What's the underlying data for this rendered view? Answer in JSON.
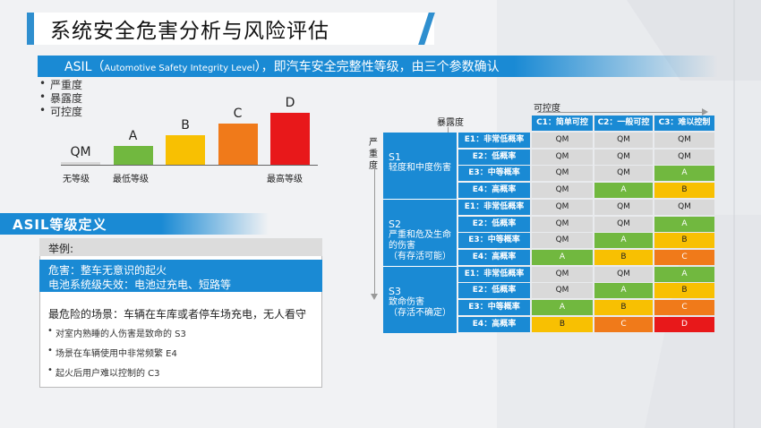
{
  "title": "系统安全危害分析与风险评估",
  "asil_band": {
    "prefix": "ASIL（",
    "english": "Automotive Safety Integrity Level",
    "suffix": "），即汽车安全完整性等级，由三个参数确认"
  },
  "bullets": [
    "严重度",
    "暴露度",
    "可控度"
  ],
  "levels": [
    {
      "label": "QM",
      "level": 0,
      "color": "#d9d9d9"
    },
    {
      "label": "A",
      "level": 1,
      "color": "#71b83f"
    },
    {
      "label": "B",
      "level": 2,
      "color": "#f8c002"
    },
    {
      "label": "C",
      "level": 3,
      "color": "#f07a1a"
    },
    {
      "label": "D",
      "level": 4,
      "color": "#e8181a"
    }
  ],
  "axis_labels": {
    "none": "无等级",
    "lowest": "最低等级",
    "highest": "最高等级"
  },
  "definition_title": "ASIL等级定义",
  "example": {
    "heading": "举例:",
    "hazard_line1": "危害：整车无意识的起火",
    "hazard_line2": "电池系统级失效：电池过充电、短路等",
    "worst_scene": "最危险的场景：车辆在车库或者停车场充电，无人看守",
    "points": [
      "对室内熟睡的人伤害是致命的 S3",
      "场景在车辆使用中非常频繁 E4",
      "起火后用户难以控制的 C3"
    ]
  },
  "matrix": {
    "controllability_label": "可控度",
    "exposure_label": "暴露度",
    "severity_label": "严重度",
    "columns": [
      "C1：简单可控",
      "C2：一般可控",
      "C3：难以控制"
    ],
    "exposures": [
      "E1：非常低概率",
      "E2：低概率",
      "E3：中等概率",
      "E4：高概率"
    ],
    "severities": [
      {
        "code": "S1",
        "desc": [
          "轻度和中度伤害"
        ]
      },
      {
        "code": "S2",
        "desc": [
          "严重和危及生命",
          "的伤害",
          "（有存活可能）"
        ]
      },
      {
        "code": "S3",
        "desc": [
          "致命伤害",
          "（存活不确定）"
        ]
      }
    ],
    "values": [
      [
        [
          "QM",
          "QM",
          "QM"
        ],
        [
          "QM",
          "QM",
          "QM"
        ],
        [
          "QM",
          "QM",
          "A"
        ],
        [
          "QM",
          "A",
          "B"
        ]
      ],
      [
        [
          "QM",
          "QM",
          "QM"
        ],
        [
          "QM",
          "QM",
          "A"
        ],
        [
          "QM",
          "A",
          "B"
        ],
        [
          "A",
          "B",
          "C"
        ]
      ],
      [
        [
          "QM",
          "QM",
          "A"
        ],
        [
          "QM",
          "A",
          "B"
        ],
        [
          "A",
          "B",
          "C"
        ],
        [
          "B",
          "C",
          "D"
        ]
      ]
    ]
  }
}
